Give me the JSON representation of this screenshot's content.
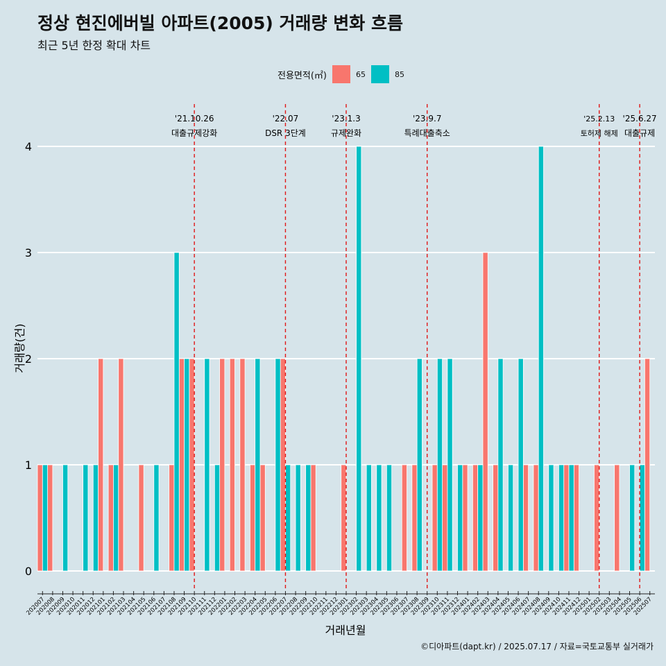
{
  "header": {
    "title": "정상 현진에버빌 아파트(2005) 거래량 변화 흐름",
    "subtitle": "최근 5년 한정 확대 차트"
  },
  "legend": {
    "title": "전용면적(㎡)",
    "items": [
      {
        "label": "65",
        "color": "#F8766D"
      },
      {
        "label": "85",
        "color": "#00BFC4"
      }
    ]
  },
  "caption": "©디아파트(dapt.kr) / 2025.07.17 / 자료=국토교통부 실거래가",
  "chart_data": {
    "type": "bar",
    "xlabel": "거래년월",
    "ylabel": "거래량(건)",
    "ylim": [
      0,
      4
    ],
    "yticks": [
      0,
      1,
      2,
      3,
      4
    ],
    "categories": [
      "202007",
      "202008",
      "202009",
      "202010",
      "202011",
      "202012",
      "202101",
      "202102",
      "202103",
      "202104",
      "202105",
      "202106",
      "202107",
      "202108",
      "202109",
      "202110",
      "202111",
      "202112",
      "202201",
      "202202",
      "202203",
      "202204",
      "202205",
      "202206",
      "202207",
      "202208",
      "202209",
      "202210",
      "202211",
      "202212",
      "202301",
      "202302",
      "202303",
      "202304",
      "202305",
      "202306",
      "202307",
      "202308",
      "202309",
      "202310",
      "202311",
      "202312",
      "202401",
      "202402",
      "202403",
      "202404",
      "202405",
      "202406",
      "202407",
      "202408",
      "202409",
      "202410",
      "202411",
      "202412",
      "202501",
      "202502",
      "202503",
      "202504",
      "202505",
      "202506",
      "202507"
    ],
    "series": [
      {
        "name": "65",
        "color": "#F8766D",
        "values": [
          1,
          1,
          0,
          0,
          0,
          0,
          2,
          1,
          2,
          0,
          1,
          0,
          0,
          1,
          2,
          2,
          0,
          0,
          2,
          2,
          2,
          1,
          1,
          0,
          2,
          0,
          0,
          1,
          0,
          0,
          1,
          0,
          0,
          0,
          0,
          0,
          1,
          1,
          0,
          1,
          1,
          0,
          1,
          1,
          3,
          1,
          0,
          0,
          1,
          1,
          0,
          0,
          1,
          1,
          0,
          1,
          0,
          1,
          0,
          0,
          2
        ]
      },
      {
        "name": "85",
        "color": "#00BFC4",
        "values": [
          1,
          0,
          1,
          0,
          1,
          1,
          0,
          1,
          0,
          0,
          0,
          1,
          0,
          3,
          2,
          0,
          2,
          1,
          0,
          0,
          0,
          2,
          0,
          2,
          1,
          1,
          1,
          0,
          0,
          0,
          0,
          4,
          1,
          1,
          1,
          0,
          0,
          2,
          0,
          2,
          2,
          1,
          0,
          1,
          0,
          2,
          1,
          2,
          0,
          4,
          1,
          1,
          1,
          0,
          0,
          0,
          0,
          0,
          1,
          1,
          0
        ]
      }
    ],
    "annotations": [
      {
        "date": "'21.10.26",
        "label": "대출규제강화",
        "x": "202110"
      },
      {
        "date": "'22.07",
        "label": "DSR 3단계",
        "x": "202207"
      },
      {
        "date": "'23.1.3",
        "label": "규제완화",
        "x": "202301"
      },
      {
        "date": "'23.9.7",
        "label": "특례대출축소",
        "x": "202309"
      },
      {
        "date": "'25.2.13",
        "label": "토허제 해제",
        "x": "202502"
      },
      {
        "date": "'25.6.27",
        "label": "대출규제",
        "x": "202506"
      }
    ],
    "grid": true,
    "legend_position": "top"
  }
}
